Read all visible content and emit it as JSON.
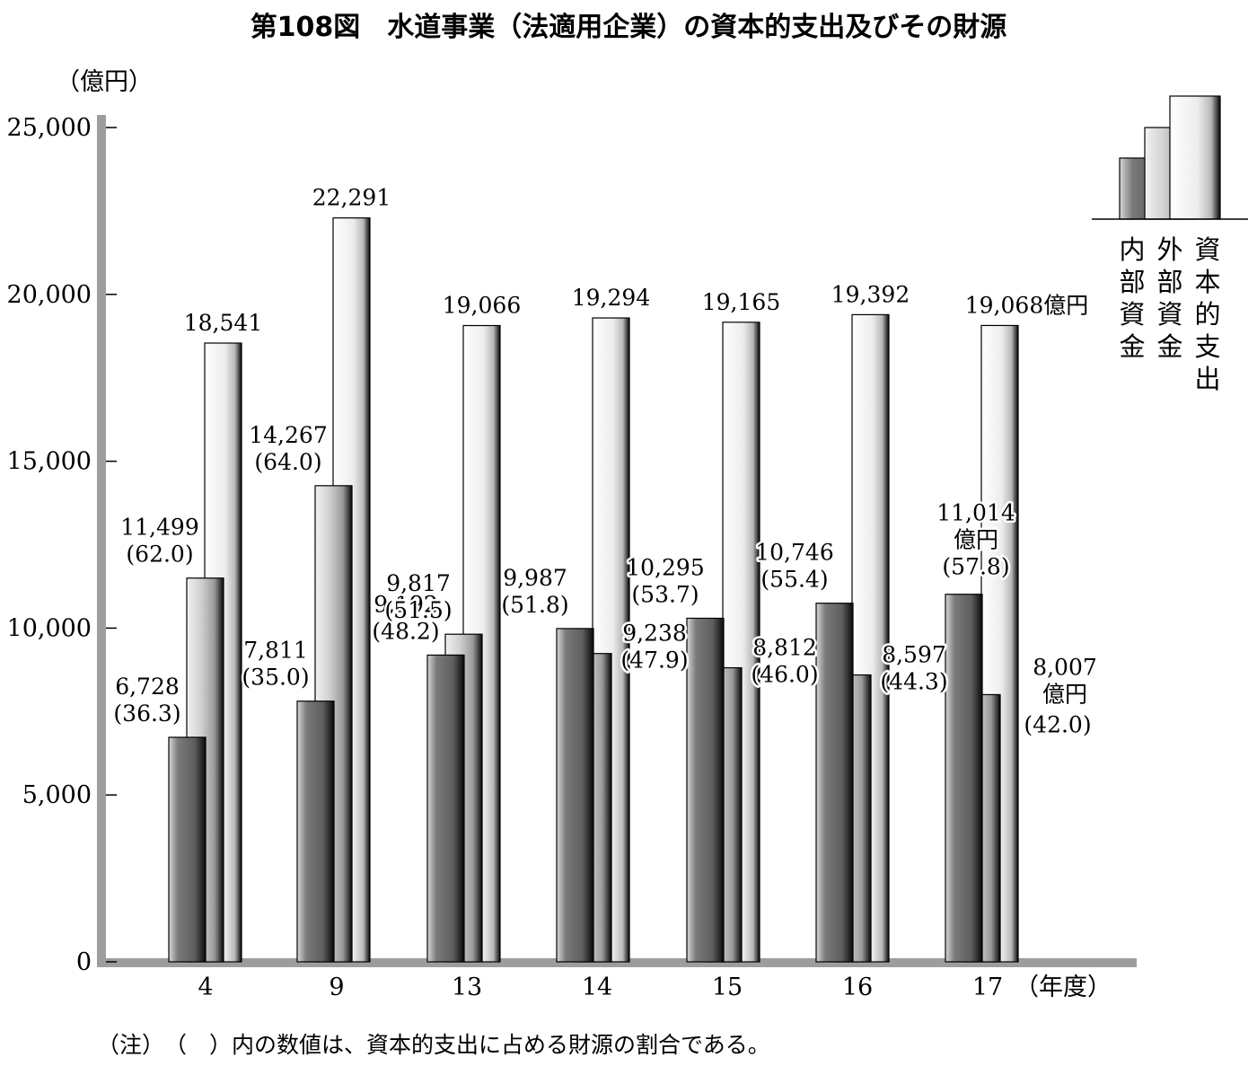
{
  "chart_data": {
    "type": "bar",
    "title": "第108図　水道事業（法適用企業）の資本的支出及びその財源",
    "y_unit": "（億円）",
    "x_unit": "（年度）",
    "ylim": [
      0,
      25000
    ],
    "y_ticks": [
      0,
      5000,
      10000,
      15000,
      20000,
      25000
    ],
    "y_tick_labels": [
      "0",
      "5,000",
      "10,000",
      "15,000",
      "20,000",
      "25,000"
    ],
    "categories": [
      "4",
      "9",
      "13",
      "14",
      "15",
      "16",
      "17"
    ],
    "series": [
      {
        "name": "内部資金",
        "color": "#8a8a8a",
        "values": [
          6728,
          7811,
          9192,
          9987,
          10295,
          10746,
          11014
        ],
        "labels": [
          "6,728",
          "7,811",
          "9,192",
          "9,987",
          "10,295",
          "10,746",
          "11,014"
        ],
        "pct": [
          "(36.3)",
          "(35.0)",
          "(48.2)",
          "(51.8)",
          "(53.7)",
          "(55.4)",
          "(57.8)"
        ]
      },
      {
        "name": "外部資金",
        "color": "#c4c4c4",
        "values": [
          11499,
          14267,
          9817,
          9238,
          8812,
          8597,
          8007
        ],
        "labels": [
          "11,499",
          "14,267",
          "9,817",
          "9,238",
          "8,812",
          "8,597",
          "8,007"
        ],
        "pct": [
          "(62.0)",
          "(64.0)",
          "(51.5)",
          "(47.9)",
          "(46.0)",
          "(44.3)",
          "(42.0)"
        ]
      },
      {
        "name": "資本的支出",
        "color": "#f2f2f2",
        "values": [
          18541,
          22291,
          19066,
          19294,
          19165,
          19392,
          19068
        ],
        "labels": [
          "18,541",
          "22,291",
          "19,066",
          "19,294",
          "19,165",
          "19,392",
          "19,068"
        ]
      }
    ],
    "last_value_suffix": "億円",
    "legend": {
      "position": "top-right",
      "items": [
        "内部資金",
        "外部資金",
        "資本的支出"
      ]
    },
    "note": "（注）　（　）内の数値は、資本的支出に占める財源の割合である。"
  }
}
